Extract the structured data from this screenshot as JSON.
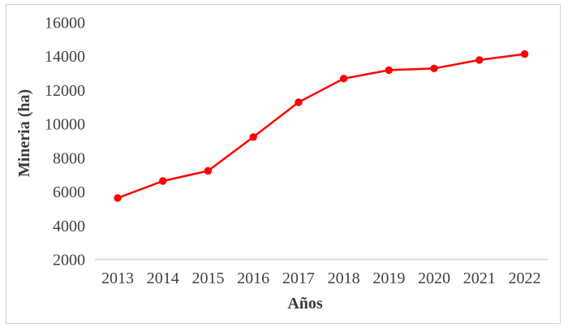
{
  "chart_data": {
    "type": "line",
    "title": "",
    "xlabel": "Años",
    "ylabel": "Mineria (ha)",
    "categories": [
      "2013",
      "2014",
      "2015",
      "2016",
      "2017",
      "2018",
      "2019",
      "2020",
      "2021",
      "2022"
    ],
    "series": [
      {
        "name": "Mineria (ha)",
        "values": [
          5650,
          6650,
          7250,
          9250,
          11300,
          12700,
          13200,
          13300,
          13800,
          14150
        ]
      }
    ],
    "ylim": [
      2000,
      16000
    ],
    "ytick_step": 2000,
    "ytick_labels": [
      "2000",
      "4000",
      "6000",
      "8000",
      "10000",
      "12000",
      "14000",
      "16000"
    ],
    "grid": false,
    "legend": "none",
    "marker": "circle",
    "colors": {
      "series_line": "#FF0000",
      "series_marker": "#FF0000",
      "axis_line": "#D9D9D9",
      "tick_text": "#404040",
      "title_text": "#3B3B3B",
      "frame_border": "#D4D4D4",
      "background": "#FFFFFF"
    }
  }
}
